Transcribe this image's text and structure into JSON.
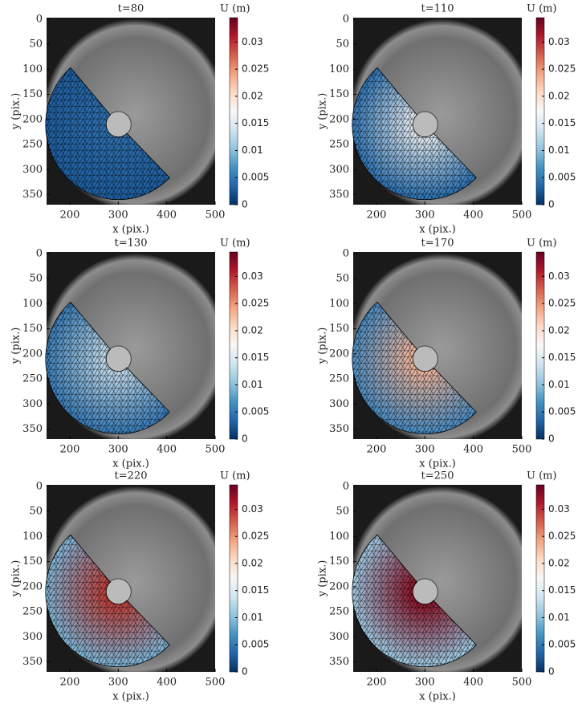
{
  "chart_data": [
    {
      "type": "mesh",
      "title": "t=80",
      "x_label": "x (pix.)",
      "y_label": "y (pix.)",
      "xlim": [
        152,
        500
      ],
      "ylim": [
        -3,
        370
      ],
      "xticks": [
        200,
        300,
        400,
        500
      ],
      "yticks": [
        0,
        50,
        100,
        150,
        200,
        250,
        300,
        350
      ],
      "colorbar": {
        "label": "U (m)",
        "lim": [
          0,
          0.0345
        ],
        "ticks": [
          0,
          0.005,
          0.01,
          0.015,
          0.02,
          0.025,
          0.03
        ]
      },
      "colors": [
        "#2f6fae",
        "#1f5fa0"
      ]
    },
    {
      "type": "mesh",
      "title": "t=110",
      "x_label": "x (pix.)",
      "y_label": "y (pix.)",
      "xlim": [
        152,
        500
      ],
      "ylim": [
        -3,
        370
      ],
      "xticks": [
        200,
        300,
        400,
        500
      ],
      "yticks": [
        0,
        50,
        100,
        150,
        200,
        250,
        300,
        350
      ],
      "colorbar": {
        "label": "U (m)",
        "lim": [
          0,
          0.0345
        ],
        "ticks": [
          0,
          0.005,
          0.01,
          0.015,
          0.02,
          0.025,
          0.03
        ]
      },
      "colors": [
        "#e8eef3",
        "#2f74b3"
      ]
    },
    {
      "type": "mesh",
      "title": "t=130",
      "x_label": "x (pix.)",
      "y_label": "y (pix.)",
      "xlim": [
        152,
        500
      ],
      "ylim": [
        -3,
        370
      ],
      "xticks": [
        200,
        300,
        400,
        500
      ],
      "yticks": [
        0,
        50,
        100,
        150,
        200,
        250,
        300,
        350
      ],
      "colorbar": {
        "label": "U (m)",
        "lim": [
          0,
          0.0345
        ],
        "ticks": [
          0,
          0.005,
          0.01,
          0.015,
          0.02,
          0.025,
          0.03
        ]
      },
      "colors": [
        "#c5dcea",
        "#3a7db8"
      ]
    },
    {
      "type": "mesh",
      "title": "t=170",
      "x_label": "x (pix.)",
      "y_label": "y (pix.)",
      "xlim": [
        152,
        500
      ],
      "ylim": [
        -3,
        370
      ],
      "xticks": [
        200,
        300,
        400,
        500
      ],
      "yticks": [
        0,
        50,
        100,
        150,
        200,
        250,
        300,
        350
      ],
      "colorbar": {
        "label": "U (m)",
        "lim": [
          0,
          0.0345
        ],
        "ticks": [
          0,
          0.005,
          0.01,
          0.015,
          0.02,
          0.025,
          0.03
        ]
      },
      "colors": [
        "#f3b79a",
        "#4b8cc2"
      ]
    },
    {
      "type": "mesh",
      "title": "t=220",
      "x_label": "x (pix.)",
      "y_label": "y (pix.)",
      "xlim": [
        152,
        500
      ],
      "ylim": [
        -3,
        370
      ],
      "xticks": [
        200,
        300,
        400,
        500
      ],
      "yticks": [
        0,
        50,
        100,
        150,
        200,
        250,
        300,
        350
      ],
      "colorbar": {
        "label": "U (m)",
        "lim": [
          0,
          0.0345
        ],
        "ticks": [
          0,
          0.005,
          0.01,
          0.015,
          0.02,
          0.025,
          0.03
        ]
      },
      "colors": [
        "#c03a33",
        "#7fb4d6"
      ]
    },
    {
      "type": "mesh",
      "title": "t=250",
      "x_label": "x (pix.)",
      "y_label": "y (pix.)",
      "xlim": [
        152,
        500
      ],
      "ylim": [
        -3,
        370
      ],
      "xticks": [
        200,
        300,
        400,
        500
      ],
      "yticks": [
        0,
        50,
        100,
        150,
        200,
        250,
        300,
        350
      ],
      "colorbar": {
        "label": "U (m)",
        "lim": [
          0,
          0.0345
        ],
        "ticks": [
          0,
          0.005,
          0.01,
          0.015,
          0.02,
          0.025,
          0.03
        ]
      },
      "colors": [
        "#8a0f24",
        "#9ec7e0"
      ]
    }
  ]
}
